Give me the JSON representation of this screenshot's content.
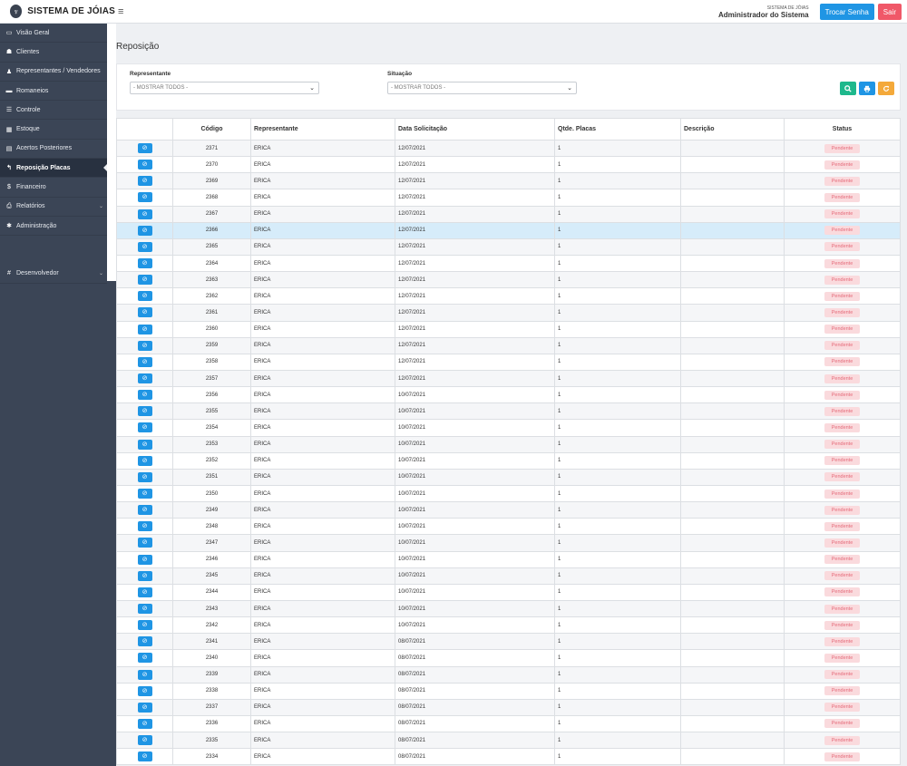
{
  "header": {
    "brand": "SISTEMA DE JÓIAS",
    "user_system": "SISTEMA DE JÓIAS",
    "user_name": "Administrador do Sistema",
    "change_password": "Trocar Senha",
    "logout": "Sair"
  },
  "sidebar": {
    "items": [
      {
        "label": "Visão Geral",
        "icon": "monitor-icon"
      },
      {
        "label": "Clientes",
        "icon": "users-icon"
      },
      {
        "label": "Representantes / Vendedores",
        "icon": "user-tie-icon"
      },
      {
        "label": "Romaneios",
        "icon": "car-icon"
      },
      {
        "label": "Controle",
        "icon": "list-icon"
      },
      {
        "label": "Estoque",
        "icon": "grid-icon"
      },
      {
        "label": "Acertos Posteriores",
        "icon": "calendar-icon"
      },
      {
        "label": "Reposição Placas",
        "icon": "reply-icon"
      },
      {
        "label": "Financeiro",
        "icon": "dollar-icon"
      },
      {
        "label": "Relatórios",
        "icon": "print-icon"
      },
      {
        "label": "Administração",
        "icon": "gear-icon"
      },
      {
        "label": "Desenvolvedor",
        "icon": "hash-icon"
      }
    ]
  },
  "page": {
    "title": "Reposição"
  },
  "filters": {
    "representante_label": "Representante",
    "representante_value": "- MOSTRAR TODOS -",
    "situacao_label": "Situação",
    "situacao_value": "- MOSTRAR TODOS -"
  },
  "table": {
    "headers": [
      "",
      "Código",
      "Representante",
      "Data Solicitação",
      "Qtde. Placas",
      "Descrição",
      "Status"
    ],
    "rows": [
      [
        "2371",
        "ERICA",
        "12/07/2021",
        "1",
        "",
        "Pendente"
      ],
      [
        "2370",
        "ERICA",
        "12/07/2021",
        "1",
        "",
        "Pendente"
      ],
      [
        "2369",
        "ERICA",
        "12/07/2021",
        "1",
        "",
        "Pendente"
      ],
      [
        "2368",
        "ERICA",
        "12/07/2021",
        "1",
        "",
        "Pendente"
      ],
      [
        "2367",
        "ERICA",
        "12/07/2021",
        "1",
        "",
        "Pendente"
      ],
      [
        "2366",
        "ERICA",
        "12/07/2021",
        "1",
        "",
        "Pendente"
      ],
      [
        "2365",
        "ERICA",
        "12/07/2021",
        "1",
        "",
        "Pendente"
      ],
      [
        "2364",
        "ERICA",
        "12/07/2021",
        "1",
        "",
        "Pendente"
      ],
      [
        "2363",
        "ERICA",
        "12/07/2021",
        "1",
        "",
        "Pendente"
      ],
      [
        "2362",
        "ERICA",
        "12/07/2021",
        "1",
        "",
        "Pendente"
      ],
      [
        "2361",
        "ERICA",
        "12/07/2021",
        "1",
        "",
        "Pendente"
      ],
      [
        "2360",
        "ERICA",
        "12/07/2021",
        "1",
        "",
        "Pendente"
      ],
      [
        "2359",
        "ERICA",
        "12/07/2021",
        "1",
        "",
        "Pendente"
      ],
      [
        "2358",
        "ERICA",
        "12/07/2021",
        "1",
        "",
        "Pendente"
      ],
      [
        "2357",
        "ERICA",
        "12/07/2021",
        "1",
        "",
        "Pendente"
      ],
      [
        "2356",
        "ERICA",
        "10/07/2021",
        "1",
        "",
        "Pendente"
      ],
      [
        "2355",
        "ERICA",
        "10/07/2021",
        "1",
        "",
        "Pendente"
      ],
      [
        "2354",
        "ERICA",
        "10/07/2021",
        "1",
        "",
        "Pendente"
      ],
      [
        "2353",
        "ERICA",
        "10/07/2021",
        "1",
        "",
        "Pendente"
      ],
      [
        "2352",
        "ERICA",
        "10/07/2021",
        "1",
        "",
        "Pendente"
      ],
      [
        "2351",
        "ERICA",
        "10/07/2021",
        "1",
        "",
        "Pendente"
      ],
      [
        "2350",
        "ERICA",
        "10/07/2021",
        "1",
        "",
        "Pendente"
      ],
      [
        "2349",
        "ERICA",
        "10/07/2021",
        "1",
        "",
        "Pendente"
      ],
      [
        "2348",
        "ERICA",
        "10/07/2021",
        "1",
        "",
        "Pendente"
      ],
      [
        "2347",
        "ERICA",
        "10/07/2021",
        "1",
        "",
        "Pendente"
      ],
      [
        "2346",
        "ERICA",
        "10/07/2021",
        "1",
        "",
        "Pendente"
      ],
      [
        "2345",
        "ERICA",
        "10/07/2021",
        "1",
        "",
        "Pendente"
      ],
      [
        "2344",
        "ERICA",
        "10/07/2021",
        "1",
        "",
        "Pendente"
      ],
      [
        "2343",
        "ERICA",
        "10/07/2021",
        "1",
        "",
        "Pendente"
      ],
      [
        "2342",
        "ERICA",
        "10/07/2021",
        "1",
        "",
        "Pendente"
      ],
      [
        "2341",
        "ERICA",
        "08/07/2021",
        "1",
        "",
        "Pendente"
      ],
      [
        "2340",
        "ERICA",
        "08/07/2021",
        "1",
        "",
        "Pendente"
      ],
      [
        "2339",
        "ERICA",
        "08/07/2021",
        "1",
        "",
        "Pendente"
      ],
      [
        "2338",
        "ERICA",
        "08/07/2021",
        "1",
        "",
        "Pendente"
      ],
      [
        "2337",
        "ERICA",
        "08/07/2021",
        "1",
        "",
        "Pendente"
      ],
      [
        "2336",
        "ERICA",
        "08/07/2021",
        "1",
        "",
        "Pendente"
      ],
      [
        "2335",
        "ERICA",
        "08/07/2021",
        "1",
        "",
        "Pendente"
      ],
      [
        "2334",
        "ERICA",
        "08/07/2021",
        "1",
        "",
        "Pendente"
      ]
    ]
  },
  "colors": {
    "sidebar_bg": "#3b4556",
    "sidebar_active": "#283140",
    "accent_blue": "#1f95e4",
    "green": "#1eb88c",
    "orange": "#f4a93a",
    "red": "#f05868",
    "selected_row": "#d6ecfa",
    "badge_bg": "#fadadd"
  }
}
